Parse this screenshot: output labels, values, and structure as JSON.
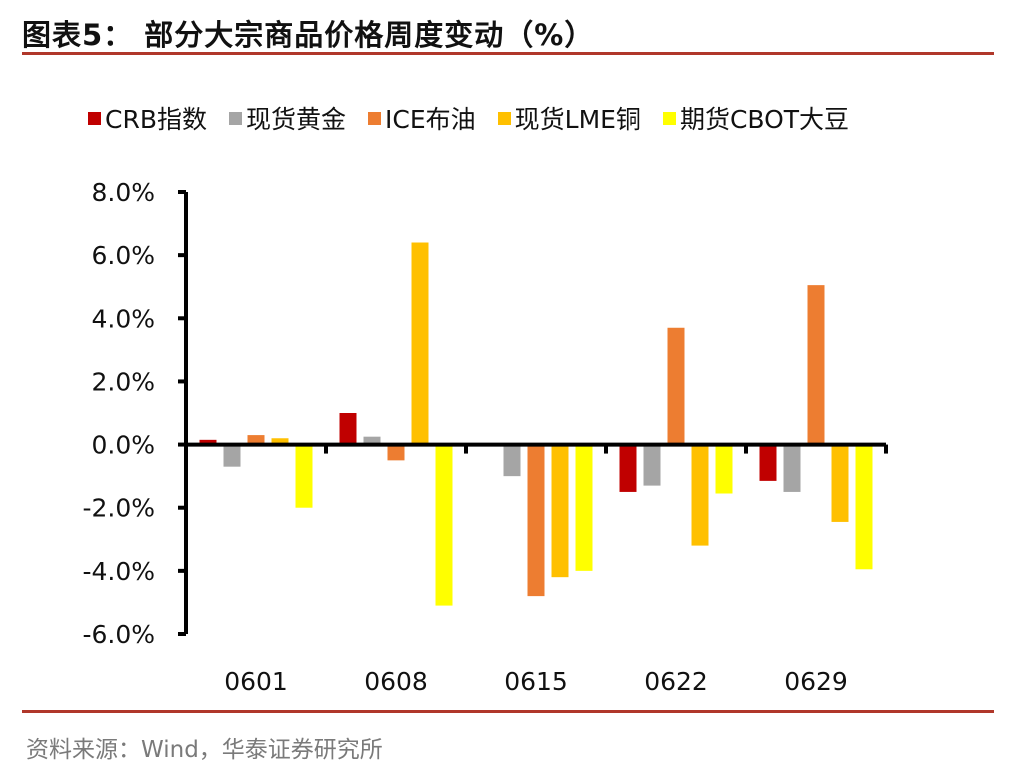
{
  "header": {
    "title": "图表5： 部分大宗商品价格周度变动（%）"
  },
  "footer": {
    "source": "资料来源：Wind，华泰证券研究所"
  },
  "colors": {
    "rule": "#b0372a",
    "axis": "#000000"
  },
  "legend": [
    {
      "label": "CRB指数",
      "color": "#c00000"
    },
    {
      "label": "现货黄金",
      "color": "#a5a5a5"
    },
    {
      "label": "ICE布油",
      "color": "#ed7d31"
    },
    {
      "label": "现货LME铜",
      "color": "#ffc000"
    },
    {
      "label": "期货CBOT大豆",
      "color": "#ffff00"
    }
  ],
  "chart_data": {
    "type": "bar",
    "title": "部分大宗商品价格周度变动（%）",
    "xlabel": "",
    "ylabel": "",
    "categories": [
      "0601",
      "0608",
      "0615",
      "0622",
      "0629"
    ],
    "series": [
      {
        "name": "CRB指数",
        "color": "#c00000",
        "values": [
          0.15,
          1.0,
          0.0,
          -1.5,
          -1.15
        ]
      },
      {
        "name": "现货黄金",
        "color": "#a5a5a5",
        "values": [
          -0.7,
          0.25,
          -1.0,
          -1.3,
          -1.5
        ]
      },
      {
        "name": "ICE布油",
        "color": "#ed7d31",
        "values": [
          0.3,
          -0.5,
          -4.8,
          3.7,
          5.05
        ]
      },
      {
        "name": "现货LME铜",
        "color": "#ffc000",
        "values": [
          0.2,
          6.4,
          -4.2,
          -3.2,
          -2.45
        ]
      },
      {
        "name": "期货CBOT大豆",
        "color": "#ffff00",
        "values": [
          -2.0,
          -5.1,
          -4.0,
          -1.55,
          -3.95
        ]
      }
    ],
    "ylim": [
      -6.0,
      8.0
    ],
    "yticks": [
      "8.0%",
      "6.0%",
      "4.0%",
      "2.0%",
      "0.0%",
      "-2.0%",
      "-4.0%",
      "-6.0%"
    ],
    "grid": false,
    "legend_position": "top",
    "source": "资料来源：Wind，华泰证券研究所"
  }
}
